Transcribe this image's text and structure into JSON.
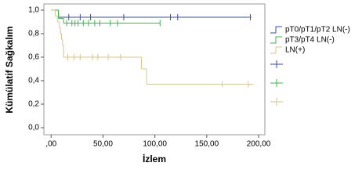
{
  "chart_data": {
    "type": "survival",
    "x_label": "İzlem",
    "y_label": "Kümülatif Sağkalım",
    "xlim": [
      -7,
      206
    ],
    "ylim": [
      -0.06,
      1.053
    ],
    "xticks": [
      {
        "value": 0,
        "label": ",00"
      },
      {
        "value": 50,
        "label": "50,00"
      },
      {
        "value": 100,
        "label": "100,00"
      },
      {
        "value": 150,
        "label": "150,00"
      },
      {
        "value": 200,
        "label": "200,00"
      }
    ],
    "yticks": [
      {
        "value": 0,
        "label": "0,0"
      },
      {
        "value": 0.2,
        "label": "0,2"
      },
      {
        "value": 0.4,
        "label": "0,4"
      },
      {
        "value": 0.6,
        "label": "0,6"
      },
      {
        "value": 0.8,
        "label": "0,8"
      },
      {
        "value": 1.0,
        "label": "1,0"
      }
    ],
    "series": [
      {
        "name": "pT0/pT1/pT2 LN(-)",
        "color": "#3a4ea3",
        "x": [
          0,
          7,
          193
        ],
        "values": [
          1.0,
          0.94,
          0.94
        ],
        "censored": [
          17,
          28,
          38,
          70,
          115,
          122,
          192
        ]
      },
      {
        "name": "pT3/pT4 LN(-)",
        "color": "#3db44e",
        "x": [
          0,
          7,
          12,
          105
        ],
        "values": [
          1.0,
          0.93,
          0.89,
          0.89
        ],
        "censored": [
          15,
          20,
          23,
          26,
          31,
          36,
          42,
          47,
          57,
          64,
          105
        ]
      },
      {
        "name": "LN(+)",
        "color": "#d6c48f",
        "x": [
          0,
          4,
          6,
          8,
          9,
          10,
          11,
          12,
          87,
          92,
          195
        ],
        "values": [
          1.0,
          0.95,
          0.9,
          0.85,
          0.8,
          0.75,
          0.7,
          0.6,
          0.5,
          0.37,
          0.37
        ],
        "censored": [
          16,
          22,
          28,
          40,
          45,
          55,
          67,
          165,
          190
        ]
      }
    ]
  }
}
